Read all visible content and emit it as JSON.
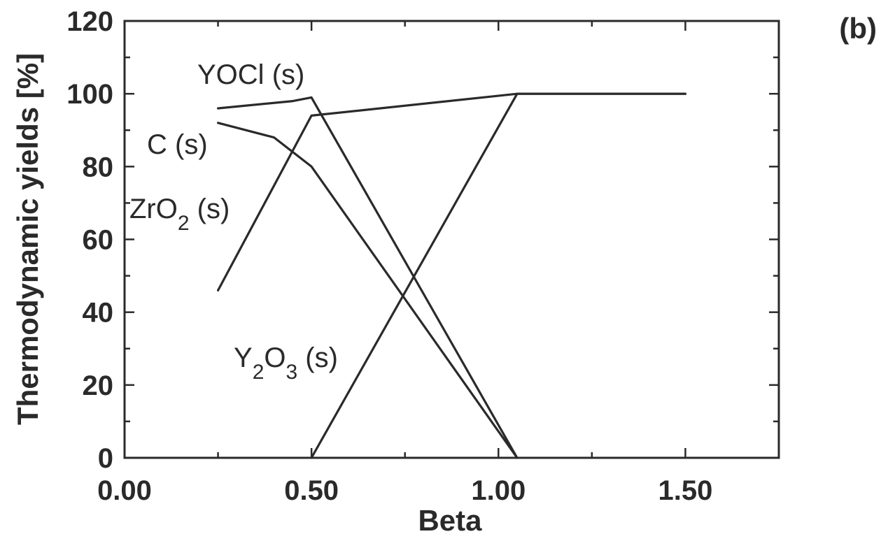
{
  "panel_label": "(b)",
  "chart_data": {
    "type": "line",
    "title": "",
    "xlabel": "Beta",
    "ylabel": "Thermodynamic yields [%]",
    "xlim": [
      0.0,
      1.75
    ],
    "ylim": [
      0,
      120
    ],
    "x_ticks": [
      0.0,
      0.5,
      1.0,
      1.5
    ],
    "x_tick_labels": [
      "0.00",
      "0.50",
      "1.00",
      "1.50"
    ],
    "x_minor_ticks": [
      0.25,
      0.75,
      1.25
    ],
    "y_ticks": [
      0,
      20,
      40,
      60,
      80,
      100,
      120
    ],
    "y_tick_labels": [
      "0",
      "20",
      "40",
      "60",
      "80",
      "100",
      "120"
    ],
    "y_minor_ticks": [
      10,
      30,
      50,
      70,
      90,
      110
    ],
    "grid": false,
    "line_color": "#2a2a2a",
    "series": [
      {
        "name": "YOCl (s)",
        "x": [
          0.25,
          0.45,
          0.5,
          1.05
        ],
        "y": [
          96,
          98,
          99,
          0
        ]
      },
      {
        "name": "C (s)",
        "x": [
          0.25,
          0.4,
          0.5,
          1.05
        ],
        "y": [
          92,
          88,
          80,
          0
        ]
      },
      {
        "name": "ZrO2 (s)",
        "x": [
          0.25,
          0.5,
          1.05,
          1.5
        ],
        "y": [
          46,
          94,
          100,
          100
        ]
      },
      {
        "name": "Y2O3 (s)",
        "x": [
          0.5,
          1.05,
          1.5
        ],
        "y": [
          0,
          100,
          100
        ]
      }
    ],
    "annotations": [
      {
        "series": "YOCl (s)",
        "base": "YOCl",
        "sub": "",
        "rest": "",
        "state": " (s)"
      },
      {
        "series": "C (s)",
        "base": "C",
        "sub": "",
        "rest": "",
        "state": " (s)"
      },
      {
        "series": "ZrO2 (s)",
        "base": "ZrO",
        "sub": "2",
        "rest": "",
        "state": " (s)"
      },
      {
        "series": "Y2O3 (s)",
        "base": "Y",
        "sub": "2",
        "rest": "O",
        "sub2": "3",
        "state": " (s)"
      }
    ]
  }
}
